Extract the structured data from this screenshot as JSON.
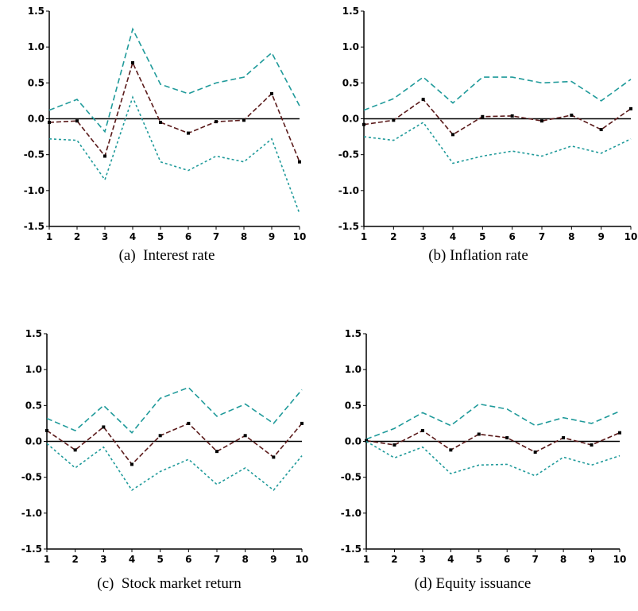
{
  "chart_data": [
    {
      "type": "line",
      "caption": "(a)  Interest rate",
      "x": [
        1,
        2,
        3,
        4,
        5,
        6,
        7,
        8,
        9,
        10
      ],
      "ylim": [
        -1.5,
        1.5
      ],
      "yticks": [
        "1.5",
        "1.0",
        "0.5",
        "0.0",
        "-0.5",
        "-1.0",
        "-1.5"
      ],
      "series": [
        {
          "role": "upper",
          "color": "#1f9a9a",
          "values": [
            0.12,
            0.27,
            -0.18,
            1.25,
            0.48,
            0.35,
            0.5,
            0.58,
            0.92,
            0.18
          ]
        },
        {
          "role": "response",
          "color": "#5a1a1a",
          "values": [
            -0.05,
            -0.03,
            -0.52,
            0.78,
            -0.05,
            -0.2,
            -0.04,
            -0.02,
            0.35,
            -0.6
          ]
        },
        {
          "role": "lower",
          "color": "#1f9a9a",
          "values": [
            -0.28,
            -0.3,
            -0.85,
            0.3,
            -0.6,
            -0.72,
            -0.52,
            -0.6,
            -0.28,
            -1.32
          ]
        }
      ]
    },
    {
      "type": "line",
      "caption": "(b) Inflation rate",
      "x": [
        1,
        2,
        3,
        4,
        5,
        6,
        7,
        8,
        9,
        10
      ],
      "ylim": [
        -1.5,
        1.5
      ],
      "yticks": [
        "1.5",
        "1.0",
        "0.5",
        "0.0",
        "-0.5",
        "-1.0",
        "-1.5"
      ],
      "series": [
        {
          "role": "upper",
          "color": "#1f9a9a",
          "values": [
            0.12,
            0.28,
            0.58,
            0.22,
            0.58,
            0.58,
            0.5,
            0.52,
            0.25,
            0.55
          ]
        },
        {
          "role": "response",
          "color": "#5a1a1a",
          "values": [
            -0.08,
            -0.02,
            0.27,
            -0.22,
            0.03,
            0.04,
            -0.03,
            0.05,
            -0.15,
            0.14
          ]
        },
        {
          "role": "lower",
          "color": "#1f9a9a",
          "values": [
            -0.25,
            -0.3,
            -0.05,
            -0.62,
            -0.52,
            -0.45,
            -0.52,
            -0.38,
            -0.48,
            -0.28
          ]
        }
      ]
    },
    {
      "type": "line",
      "caption": "(c)  Stock market return",
      "x": [
        1,
        2,
        3,
        4,
        5,
        6,
        7,
        8,
        9,
        10
      ],
      "ylim": [
        -1.5,
        1.5
      ],
      "yticks": [
        "1.5",
        "1.0",
        "0.5",
        "0.0",
        "-0.5",
        "-1.0",
        "-1.5"
      ],
      "series": [
        {
          "role": "upper",
          "color": "#1f9a9a",
          "values": [
            0.32,
            0.15,
            0.5,
            0.12,
            0.6,
            0.75,
            0.35,
            0.52,
            0.25,
            0.72
          ]
        },
        {
          "role": "response",
          "color": "#5a1a1a",
          "values": [
            0.15,
            -0.12,
            0.2,
            -0.32,
            0.08,
            0.25,
            -0.14,
            0.08,
            -0.22,
            0.25
          ]
        },
        {
          "role": "lower",
          "color": "#1f9a9a",
          "values": [
            -0.03,
            -0.37,
            -0.08,
            -0.68,
            -0.42,
            -0.25,
            -0.6,
            -0.37,
            -0.68,
            -0.2
          ]
        }
      ]
    },
    {
      "type": "line",
      "caption": "(d) Equity issuance",
      "x": [
        1,
        2,
        3,
        4,
        5,
        6,
        7,
        8,
        9,
        10
      ],
      "ylim": [
        -1.5,
        1.5
      ],
      "yticks": [
        "1.5",
        "1.0",
        "0.5",
        "0.0",
        "-0.5",
        "-1.0",
        "-1.5"
      ],
      "series": [
        {
          "role": "upper",
          "color": "#1f9a9a",
          "values": [
            0.03,
            0.18,
            0.4,
            0.22,
            0.52,
            0.45,
            0.22,
            0.33,
            0.25,
            0.42
          ]
        },
        {
          "role": "response",
          "color": "#5a1a1a",
          "values": [
            0.01,
            -0.05,
            0.15,
            -0.12,
            0.1,
            0.05,
            -0.15,
            0.05,
            -0.05,
            0.12
          ]
        },
        {
          "role": "lower",
          "color": "#1f9a9a",
          "values": [
            0.0,
            -0.23,
            -0.08,
            -0.45,
            -0.33,
            -0.32,
            -0.48,
            -0.22,
            -0.33,
            -0.2
          ]
        }
      ]
    }
  ]
}
